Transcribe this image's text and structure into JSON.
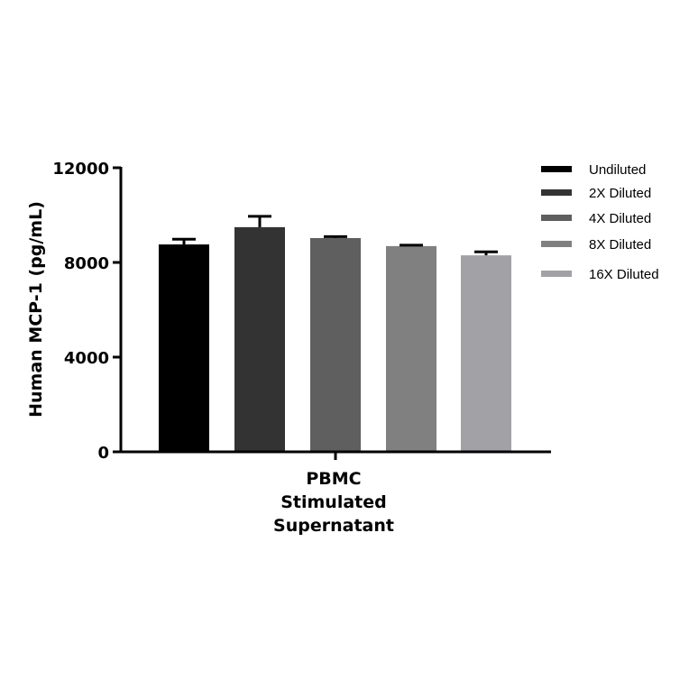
{
  "chart_data": {
    "type": "bar",
    "title": "",
    "xlabel": "PBMC Stimulated Supernatant",
    "xlabel_lines": [
      "PBMC",
      "Stimulated",
      "Supernatant"
    ],
    "ylabel": "Human MCP-1 (pg/mL)",
    "ylim": [
      0,
      12000
    ],
    "yticks": [
      0,
      4000,
      8000,
      12000
    ],
    "ytick_labels": [
      "0",
      "4000",
      "8000",
      "12000"
    ],
    "grid": false,
    "legend_position": "right",
    "categories": [
      "PBMC Stimulated Supernatant"
    ],
    "series": [
      {
        "name": "Undiluted",
        "values": [
          8760
        ],
        "error": [
          220
        ],
        "color": "#000000"
      },
      {
        "name": "2X Diluted",
        "values": [
          9490
        ],
        "error": [
          460
        ],
        "color": "#333333"
      },
      {
        "name": "4X Diluted",
        "values": [
          9030
        ],
        "error": [
          60
        ],
        "color": "#5f5f5f"
      },
      {
        "name": "8X Diluted",
        "values": [
          8690
        ],
        "error": [
          40
        ],
        "color": "#808080"
      },
      {
        "name": "16X Diluted",
        "values": [
          8300
        ],
        "error": [
          150
        ],
        "color": "#a2a2a6"
      }
    ]
  },
  "legend": {
    "items": [
      "Undiluted",
      "2X Diluted",
      "4X Diluted",
      "8X Diluted",
      "16X Diluted"
    ]
  }
}
